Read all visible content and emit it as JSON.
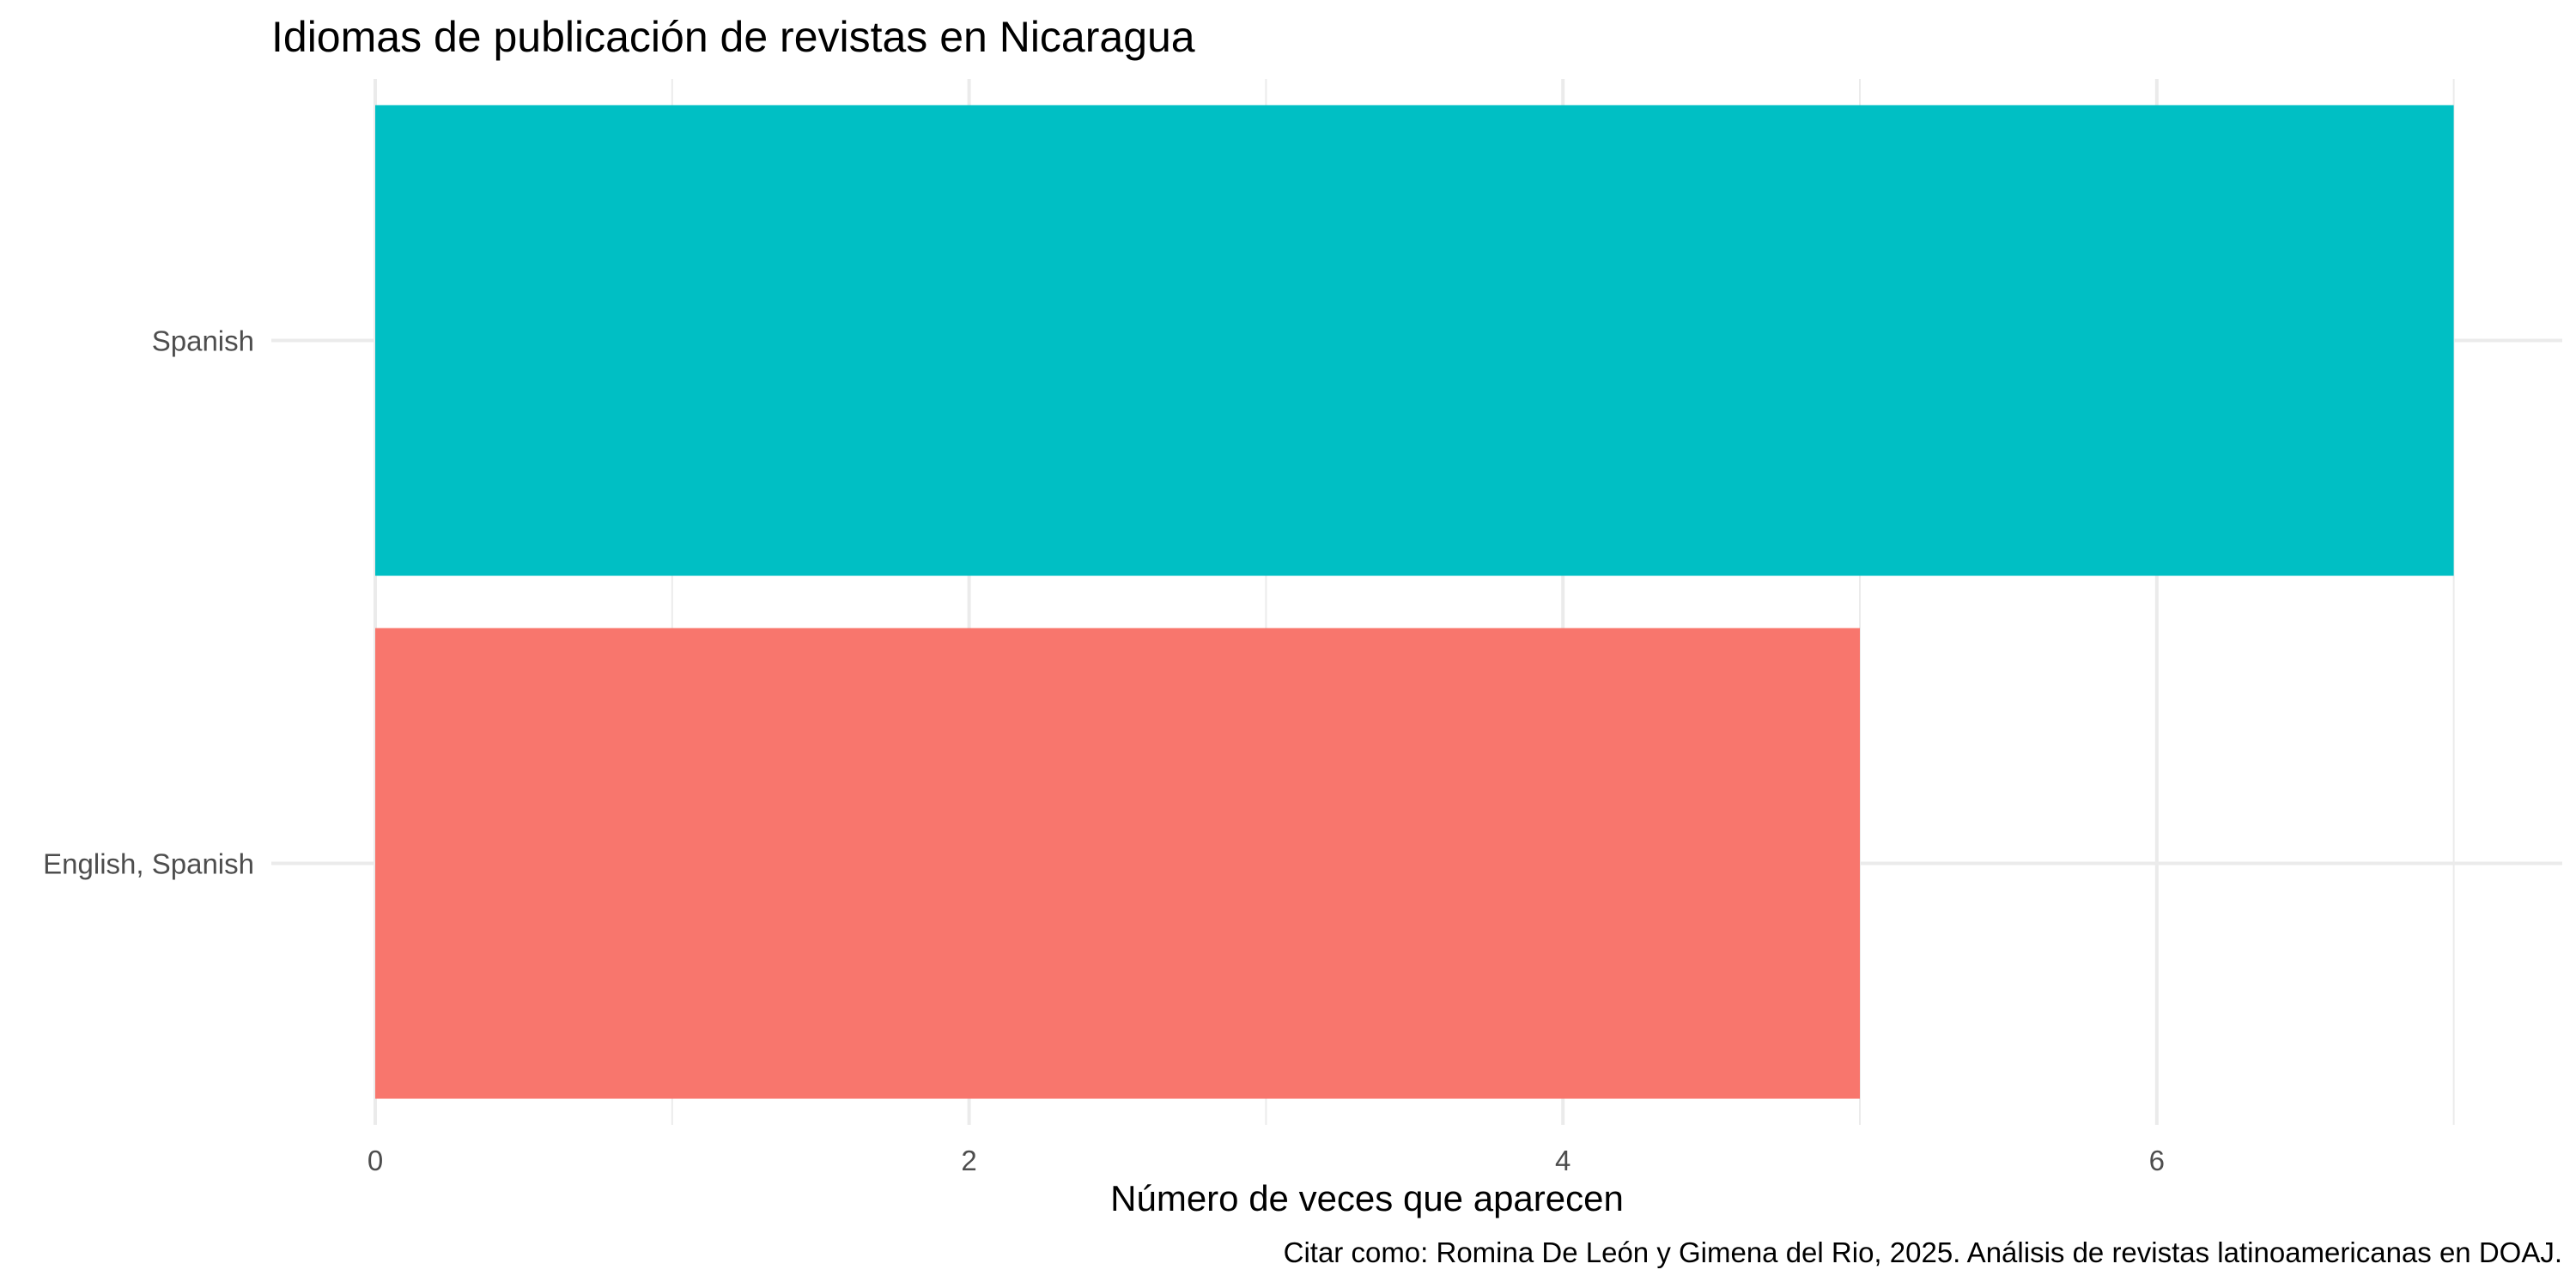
{
  "chart_data": {
    "type": "bar",
    "orientation": "horizontal",
    "title": "Idiomas de publicación de revistas en Nicaragua",
    "xlabel": "Número de veces que aparecen",
    "ylabel": "",
    "caption": "Citar como: Romina De León y Gimena del Rio, 2025. Análisis de revistas latinoamericanas en DOAJ.",
    "categories": [
      "English, Spanish",
      "Spanish"
    ],
    "values": [
      5,
      7
    ],
    "colors": [
      "#F8766D",
      "#00BFC4"
    ],
    "xlim": [
      0,
      7
    ],
    "xticks": [
      0,
      2,
      4,
      6
    ],
    "grid": true,
    "legend": "none"
  }
}
